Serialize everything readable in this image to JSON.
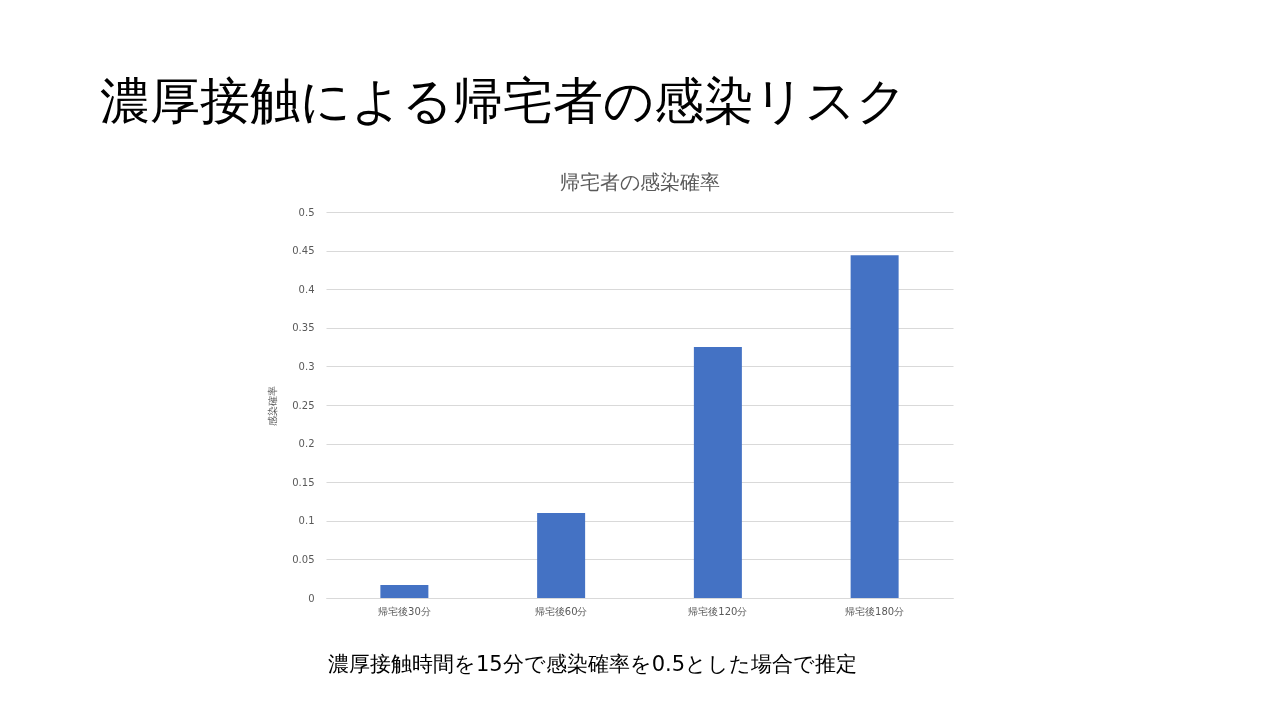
{
  "chart_data": {
    "type": "bar",
    "title": "濃厚接触による帰宅者の感染リスク",
    "subtitle": "帰宅者の感染確率",
    "ylabel": "感染確率",
    "categories": [
      "帰宅後30分",
      "帰宅後60分",
      "帰宅後120分",
      "帰宅後180分"
    ],
    "values": [
      0.017,
      0.11,
      0.325,
      0.444
    ],
    "color": "#4472c4",
    "ylim": [
      0,
      0.5
    ],
    "yticks": [
      0,
      0.05,
      0.1,
      0.15,
      0.2,
      0.25,
      0.3,
      0.35,
      0.4,
      0.45,
      0.5
    ],
    "grid": "y",
    "annotations": [
      "濃厚接触時間を15分で感染確率を0.5とした場合で推定"
    ]
  }
}
